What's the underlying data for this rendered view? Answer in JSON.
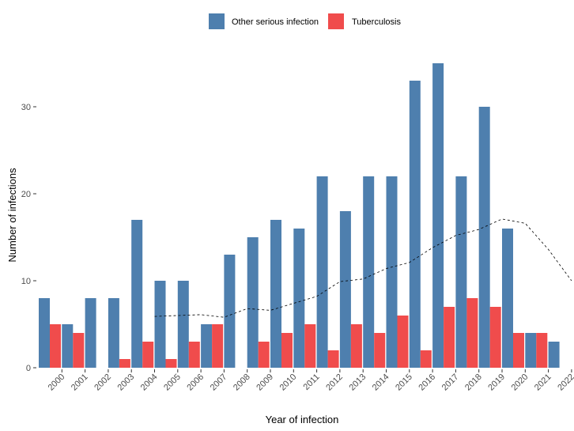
{
  "chart_data": {
    "type": "bar",
    "xlabel": "Year of infection",
    "ylabel": "Number of infections",
    "legend_position": "top-center",
    "grid": false,
    "ylim": [
      0,
      37
    ],
    "y_ticks": [
      "0",
      "10",
      "20",
      "30"
    ],
    "categories": [
      "2000",
      "2001",
      "2002",
      "2003",
      "2004",
      "2005",
      "2006",
      "2007",
      "2008",
      "2009",
      "2010",
      "2011",
      "2012",
      "2013",
      "2014",
      "2015",
      "2016",
      "2017",
      "2018",
      "2019",
      "2020",
      "2021",
      "2022"
    ],
    "series": [
      {
        "name": "Other serious infection",
        "color": "#4e7fae",
        "values": [
          8,
          5,
          8,
          8,
          17,
          10,
          10,
          5,
          13,
          15,
          17,
          16,
          22,
          18,
          22,
          22,
          33,
          35,
          22,
          30,
          16,
          4,
          3
        ]
      },
      {
        "name": "Tuberculosis",
        "color": "#f04c4c",
        "values": [
          5,
          4,
          0,
          1,
          3,
          1,
          3,
          5,
          0,
          3,
          4,
          5,
          2,
          5,
          4,
          6,
          2,
          7,
          8,
          7,
          4,
          4,
          0
        ]
      }
    ],
    "trend_line": {
      "style": "dashed",
      "color": "#000000",
      "x": [
        "2004",
        "2005",
        "2006",
        "2007",
        "2008",
        "2009",
        "2010",
        "2011",
        "2012",
        "2013",
        "2014",
        "2015",
        "2016",
        "2017",
        "2018",
        "2019",
        "2020",
        "2021",
        "2022"
      ],
      "y": [
        5.9,
        6.0,
        6.1,
        5.8,
        6.8,
        6.6,
        7.4,
        8.2,
        9.9,
        10.2,
        11.4,
        12.1,
        13.8,
        15.2,
        15.9,
        17.1,
        16.6,
        13.6,
        10.0
      ]
    }
  }
}
